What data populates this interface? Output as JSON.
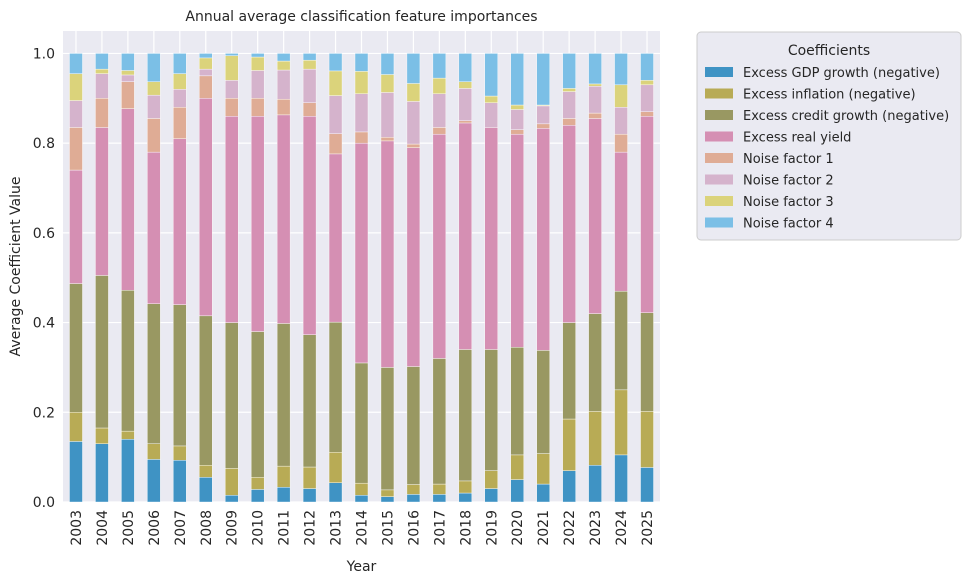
{
  "chart_data": {
    "type": "bar",
    "stacked": true,
    "title": "Annual average classification feature importances",
    "xlabel": "Year",
    "ylabel": "Average Coefficient Value",
    "ylim": [
      0,
      1.05
    ],
    "yticks": [
      0.0,
      0.2,
      0.4,
      0.6,
      0.8,
      1.0
    ],
    "ytick_labels": [
      "0.0",
      "0.2",
      "0.4",
      "0.6",
      "0.8",
      "1.0"
    ],
    "grid": true,
    "legend_title": "Coefficients",
    "legend_position": "outside-right",
    "categories": [
      "2003",
      "2004",
      "2005",
      "2006",
      "2007",
      "2008",
      "2009",
      "2010",
      "2011",
      "2012",
      "2013",
      "2014",
      "2015",
      "2016",
      "2017",
      "2018",
      "2019",
      "2020",
      "2021",
      "2022",
      "2023",
      "2024",
      "2025"
    ],
    "series": [
      {
        "name": "Excess GDP growth (negative)",
        "color": "#3f93c4",
        "values": [
          0.135,
          0.13,
          0.14,
          0.095,
          0.093,
          0.055,
          0.015,
          0.028,
          0.033,
          0.03,
          0.043,
          0.015,
          0.012,
          0.017,
          0.017,
          0.02,
          0.03,
          0.05,
          0.04,
          0.07,
          0.082,
          0.105,
          0.077
        ]
      },
      {
        "name": "Excess inflation (negative)",
        "color": "#b8ab55",
        "values": [
          0.065,
          0.035,
          0.018,
          0.035,
          0.032,
          0.027,
          0.06,
          0.027,
          0.047,
          0.048,
          0.068,
          0.027,
          0.015,
          0.022,
          0.023,
          0.027,
          0.04,
          0.055,
          0.068,
          0.115,
          0.12,
          0.145,
          0.125
        ]
      },
      {
        "name": "Excess credit growth (negative)",
        "color": "#999862",
        "values": [
          0.287,
          0.34,
          0.314,
          0.312,
          0.315,
          0.333,
          0.325,
          0.325,
          0.318,
          0.295,
          0.29,
          0.268,
          0.273,
          0.263,
          0.28,
          0.293,
          0.27,
          0.24,
          0.23,
          0.215,
          0.218,
          0.22,
          0.22
        ]
      },
      {
        "name": "Excess real yield",
        "color": "#d58fb3",
        "values": [
          0.253,
          0.33,
          0.405,
          0.338,
          0.37,
          0.485,
          0.46,
          0.48,
          0.465,
          0.487,
          0.375,
          0.49,
          0.505,
          0.488,
          0.5,
          0.505,
          0.495,
          0.475,
          0.495,
          0.44,
          0.435,
          0.31,
          0.438
        ]
      },
      {
        "name": "Noise factor 1",
        "color": "#dfac95",
        "values": [
          0.095,
          0.065,
          0.06,
          0.075,
          0.07,
          0.05,
          0.04,
          0.04,
          0.035,
          0.03,
          0.045,
          0.025,
          0.008,
          0.008,
          0.015,
          0.005,
          0.0,
          0.01,
          0.01,
          0.015,
          0.012,
          0.04,
          0.01
        ]
      },
      {
        "name": "Noise factor 2",
        "color": "#d5b3cc",
        "values": [
          0.06,
          0.055,
          0.015,
          0.052,
          0.04,
          0.015,
          0.04,
          0.062,
          0.065,
          0.075,
          0.085,
          0.085,
          0.1,
          0.095,
          0.075,
          0.072,
          0.055,
          0.045,
          0.04,
          0.06,
          0.06,
          0.06,
          0.06
        ]
      },
      {
        "name": "Noise factor 3",
        "color": "#dbd37b",
        "values": [
          0.06,
          0.01,
          0.01,
          0.03,
          0.035,
          0.025,
          0.055,
          0.03,
          0.02,
          0.02,
          0.055,
          0.05,
          0.04,
          0.04,
          0.035,
          0.015,
          0.015,
          0.01,
          0.002,
          0.007,
          0.005,
          0.05,
          0.01
        ]
      },
      {
        "name": "Noise factor 4",
        "color": "#7bbfe6",
        "values": [
          0.045,
          0.035,
          0.038,
          0.063,
          0.045,
          0.01,
          0.005,
          0.008,
          0.017,
          0.015,
          0.039,
          0.04,
          0.047,
          0.067,
          0.055,
          0.063,
          0.095,
          0.115,
          0.115,
          0.078,
          0.068,
          0.07,
          0.06
        ]
      }
    ]
  }
}
